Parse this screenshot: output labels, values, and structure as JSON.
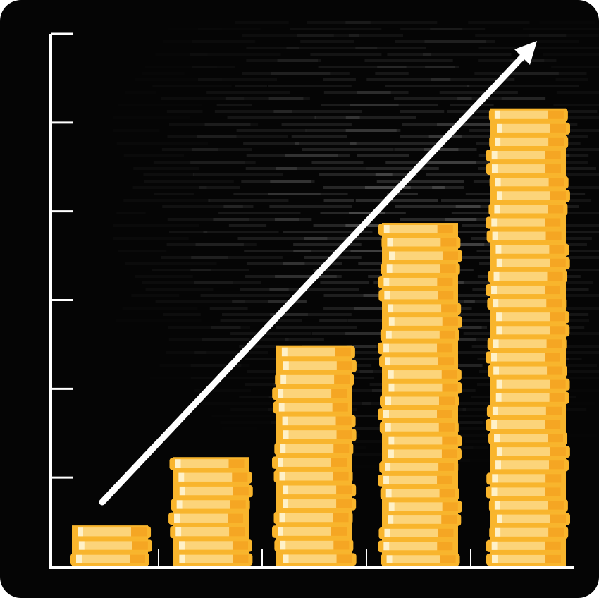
{
  "chart_data": {
    "type": "bar",
    "categories": [
      null,
      null,
      null,
      null,
      null
    ],
    "values": [
      0.46,
      1.23,
      2.49,
      3.87,
      5.16
    ],
    "color": "#f7b52e",
    "ylim": [
      0,
      6
    ],
    "yticks": [
      1,
      2,
      3,
      4,
      5,
      6
    ]
  }
}
